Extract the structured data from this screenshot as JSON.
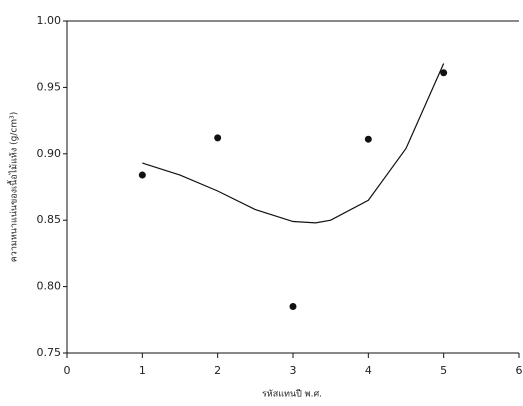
{
  "chart_data": {
    "type": "scatter",
    "x_label": "รหัสแทนปี พ.ศ.",
    "y_label": "ความหนาแน่นของเนื้อไม้แห้ง (g/cm³)",
    "x": [
      1,
      2,
      3,
      4,
      5
    ],
    "values": [
      0.884,
      0.912,
      0.785,
      0.911,
      0.961
    ],
    "color": "#111111",
    "trendline": {
      "x": [
        1,
        1.5,
        2,
        2.5,
        3,
        3.3,
        3.5,
        4,
        4.5,
        5
      ],
      "values": [
        0.893,
        0.884,
        0.872,
        0.858,
        0.849,
        0.848,
        0.85,
        0.865,
        0.904,
        0.968
      ],
      "color": "#111111"
    },
    "xlim": [
      0,
      6
    ],
    "xticks": [
      0,
      1,
      2,
      3,
      4,
      5,
      6
    ],
    "ylim": [
      0.75,
      1.0
    ],
    "yticks": [
      0.75,
      {
        "value": 0.8,
        "label": "0.80"
      },
      0.85,
      {
        "value": 0.9,
        "label": "0.90"
      },
      0.95,
      {
        "value": 1.0,
        "label": "1.00"
      }
    ],
    "grid": false
  }
}
